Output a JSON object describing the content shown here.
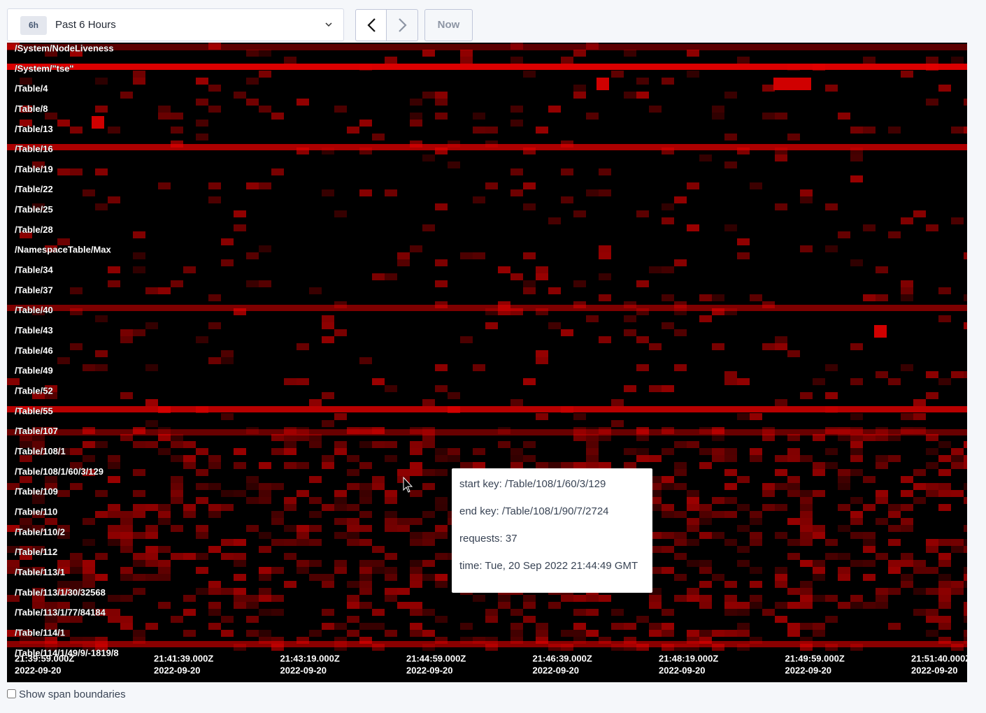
{
  "time_range": {
    "badge": "6h",
    "label": "Past 6 Hours"
  },
  "buttons": {
    "now": "Now"
  },
  "key_labels": [
    "/System/NodeLiveness",
    "/System/\"tse\"",
    "/Table/4",
    "/Table/8",
    "/Table/13",
    "/Table/16",
    "/Table/19",
    "/Table/22",
    "/Table/25",
    "/Table/28",
    "/NamespaceTable/Max",
    "/Table/34",
    "/Table/37",
    "/Table/40",
    "/Table/43",
    "/Table/46",
    "/Table/49",
    "/Table/52",
    "/Table/55",
    "/Table/107",
    "/Table/108/1",
    "/Table/108/1/60/3/129",
    "/Table/109",
    "/Table/110",
    "/Table/110/2",
    "/Table/112",
    "/Table/113/1",
    "/Table/113/1/30/32568",
    "/Table/113/1/77/84184",
    "/Table/114/1",
    "/Table/114/1/49/9/-1819/8"
  ],
  "time_labels": [
    {
      "time": "21:39:59.000Z",
      "date": "2022-09-20"
    },
    {
      "time": "21:41:39.000Z",
      "date": "2022-09-20"
    },
    {
      "time": "21:43:19.000Z",
      "date": "2022-09-20"
    },
    {
      "time": "21:44:59.000Z",
      "date": "2022-09-20"
    },
    {
      "time": "21:46:39.000Z",
      "date": "2022-09-20"
    },
    {
      "time": "21:48:19.000Z",
      "date": "2022-09-20"
    },
    {
      "time": "21:49:59.000Z",
      "date": "2022-09-20"
    },
    {
      "time": "21:51:40.000Z",
      "date": "2022-09-20"
    }
  ],
  "tooltip": {
    "start_key": "start key: /Table/108/1/60/3/129",
    "end_key": "end key: /Table/108/1/90/7/2724",
    "requests": "requests: 37",
    "time": "time: Tue, 20 Sep 2022 21:44:49 GMT"
  },
  "checkbox": {
    "label": "Show span boundaries"
  }
}
